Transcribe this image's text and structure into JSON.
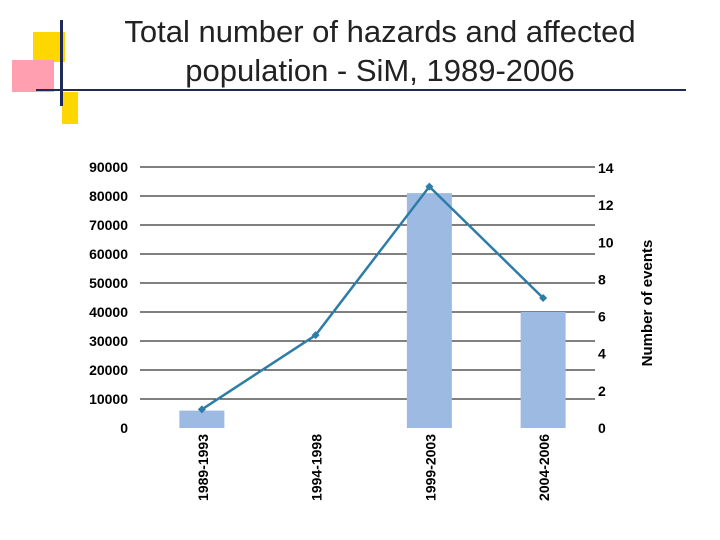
{
  "slide": {
    "title": "Total number of hazards and affected population - SiM, 1989-2006"
  },
  "colors": {
    "bar": "#9dbbe2",
    "line": "#2e7ca8",
    "grid": "#000000",
    "deco_yellow": "#ffd700",
    "deco_pink": "#ff8fa6",
    "deco_line": "#1f2a5a"
  },
  "chart_data": {
    "type": "bar",
    "categories": [
      "1989-1993",
      "1994-1998",
      "1999-2003",
      "2004-2006"
    ],
    "series": [
      {
        "type": "bar",
        "axis": "left",
        "values": [
          6000,
          0,
          81000,
          40000
        ]
      },
      {
        "type": "line",
        "axis": "right",
        "values": [
          1,
          5,
          13,
          7
        ]
      }
    ],
    "y_left": {
      "ticks": [
        "0",
        "10000",
        "20000",
        "30000",
        "40000",
        "50000",
        "60000",
        "70000",
        "80000",
        "90000"
      ],
      "ylim": [
        0,
        90000
      ]
    },
    "y_right": {
      "label": "Number of events",
      "ticks": [
        "0",
        "2",
        "4",
        "6",
        "8",
        "10",
        "12",
        "14"
      ],
      "ylim": [
        0,
        14
      ]
    },
    "grid": true,
    "legend": "none"
  }
}
